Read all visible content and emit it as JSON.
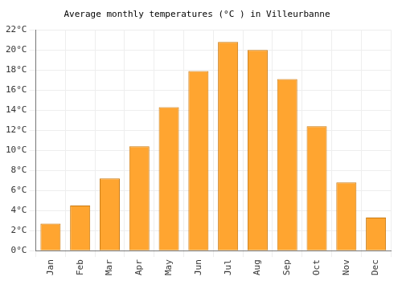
{
  "chart_data": {
    "type": "bar",
    "title": "Average monthly temperatures (°C ) in Villeurbanne",
    "categories": [
      "Jan",
      "Feb",
      "Mar",
      "Apr",
      "May",
      "Jun",
      "Jul",
      "Aug",
      "Sep",
      "Oct",
      "Nov",
      "Dec"
    ],
    "values": [
      2.7,
      4.5,
      7.2,
      10.4,
      14.3,
      17.9,
      20.8,
      20.0,
      17.1,
      12.4,
      6.8,
      3.3
    ],
    "color": "#ffa530",
    "ylim": [
      0,
      22
    ],
    "yticks": [
      {
        "value": 0,
        "label": "0°C"
      },
      {
        "value": 2,
        "label": "2°C"
      },
      {
        "value": 4,
        "label": "4°C"
      },
      {
        "value": 6,
        "label": "6°C"
      },
      {
        "value": 8,
        "label": "8°C"
      },
      {
        "value": 10,
        "label": "10°C"
      },
      {
        "value": 12,
        "label": "12°C"
      },
      {
        "value": 14,
        "label": "14°C"
      },
      {
        "value": 16,
        "label": "16°C"
      },
      {
        "value": 18,
        "label": "18°C"
      },
      {
        "value": 20,
        "label": "20°C"
      },
      {
        "value": 22,
        "label": "22°C"
      }
    ],
    "grid": true
  }
}
